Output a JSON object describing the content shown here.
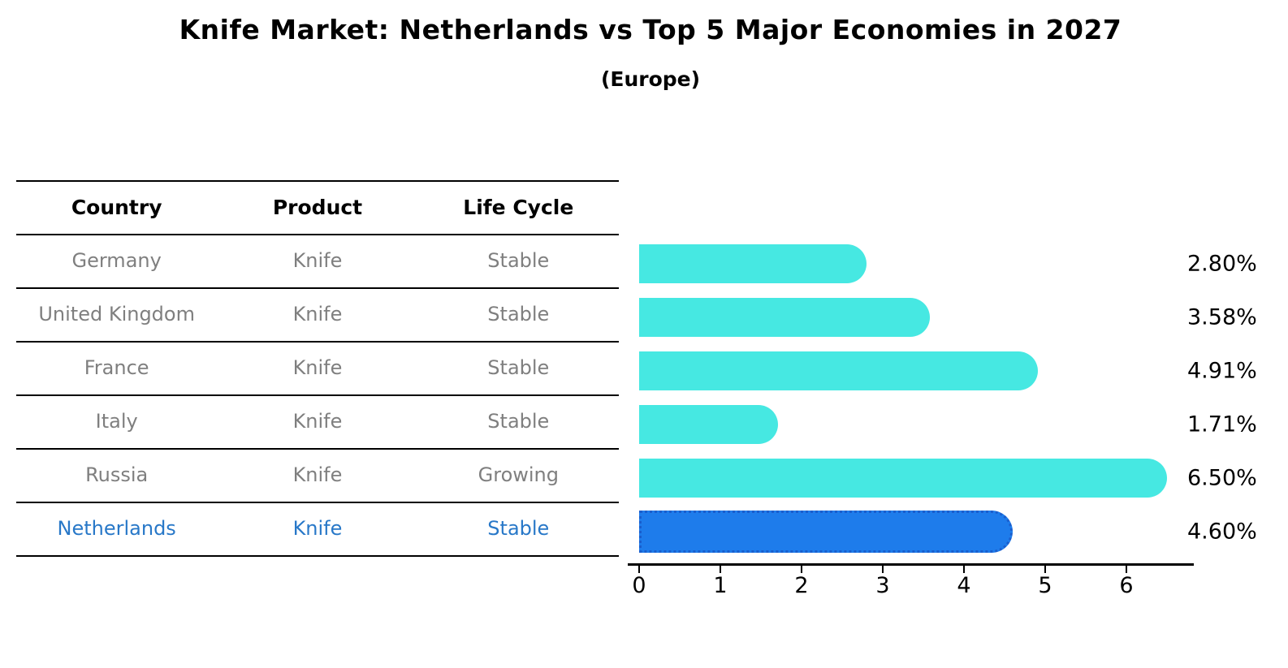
{
  "title": "Knife Market: Netherlands vs Top 5 Major Economies in 2027",
  "subtitle": "(Europe)",
  "table": {
    "headers": {
      "country": "Country",
      "product": "Product",
      "life_cycle": "Life Cycle"
    },
    "rows": [
      {
        "country": "Germany",
        "product": "Knife",
        "life_cycle": "Stable",
        "highlighted": false
      },
      {
        "country": "United Kingdom",
        "product": "Knife",
        "life_cycle": "Stable",
        "highlighted": false
      },
      {
        "country": "France",
        "product": "Knife",
        "life_cycle": "Stable",
        "highlighted": false
      },
      {
        "country": "Italy",
        "product": "Knife",
        "life_cycle": "Stable",
        "highlighted": false
      },
      {
        "country": "Russia",
        "product": "Knife",
        "life_cycle": "Growing",
        "highlighted": false
      },
      {
        "country": "Netherlands",
        "product": "Knife",
        "life_cycle": "Stable",
        "highlighted": true
      }
    ]
  },
  "chart_data": {
    "type": "bar",
    "orientation": "horizontal",
    "title": "Knife Market: Netherlands vs Top 5 Major Economies in 2027",
    "subtitle": "(Europe)",
    "categories": [
      "Germany",
      "United Kingdom",
      "France",
      "Italy",
      "Russia",
      "Netherlands"
    ],
    "values": [
      2.8,
      3.58,
      4.91,
      1.71,
      6.5,
      4.6
    ],
    "value_labels": [
      "2.80%",
      "3.58%",
      "4.91%",
      "1.71%",
      "6.50%",
      "4.60%"
    ],
    "xlabel": "",
    "ylabel": "",
    "xlim": [
      0,
      6.85
    ],
    "xticks": [
      0,
      1,
      2,
      3,
      4,
      5,
      6
    ],
    "grid": false,
    "legend": false,
    "bar_color": "#46e8e2",
    "highlight_color": "#1e7ceb",
    "highlight_border_color": "#1a5ecd",
    "highlight_index": 5
  }
}
